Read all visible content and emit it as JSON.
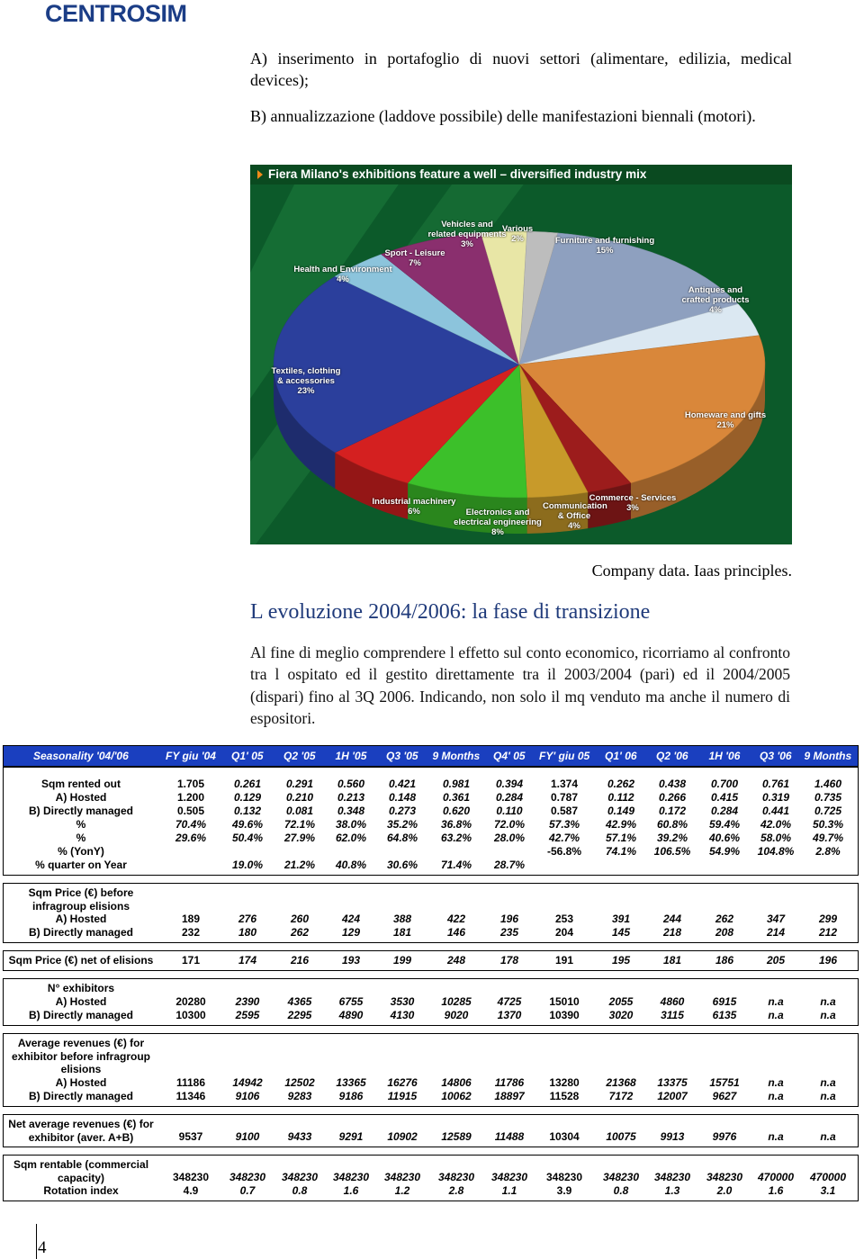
{
  "header": {
    "logo": "CENTROSIM"
  },
  "list": [
    "A)  inserimento in portafoglio di nuovi settori (alimentare, edilizia, medical devices);",
    "B)  annualizzazione (laddove possibile) delle manifestazioni biennali (motori)."
  ],
  "figure": {
    "chart_data": {
      "type": "pie",
      "title": "Fiera Milano's exhibitions feature a well – diversified industry mix",
      "categories": [
        "Furniture and furnishing",
        "Antiques and crafted products",
        "Homeware and gifts",
        "Commerce - Services",
        "Communication & Office",
        "Electronics and electrical engineering",
        "Industrial machinery",
        "Textiles, clothing & accessories",
        "Health and Environment",
        "Sport - Leisure",
        "Vehicles and related equipments",
        "Various"
      ],
      "values": [
        15,
        4,
        21,
        3,
        4,
        8,
        6,
        23,
        4,
        7,
        3,
        2
      ],
      "value_labels": [
        "15%",
        "4%",
        "21%",
        "3%",
        "4%",
        "8%",
        "6%",
        "23%",
        "4%",
        "7%",
        "3%",
        "2%"
      ],
      "colors": [
        "#8ea0bf",
        "#dbe8f2",
        "#d9873a",
        "#9c1c1c",
        "#c89a2a",
        "#3cc02a",
        "#d42020",
        "#2b3f9c",
        "#8cc4dc",
        "#8a2f6e",
        "#e8e6a6",
        "#bdbdbd"
      ]
    }
  },
  "caption": "Company data. Iaas principles.",
  "heading": "L evoluzione 2004/2006: la fase di transizione",
  "paragraph": "Al fine di meglio comprendere l effetto sul conto economico, ricorriamo al confronto tra  l ospitato  ed il  gestito direttamente  tra il 2003/2004 (pari) ed il 2004/2005 (dispari) fino al 3Q 2006. Indicando, non solo il mq venduto ma anche il numero di espositori.",
  "table": {
    "columns": [
      "Seasonality '04/'06",
      "FY giu '04",
      "Q1' 05",
      "Q2 '05",
      "1H '05",
      "Q3 '05",
      "9 Months",
      "Q4' 05",
      "FY' giu 05",
      "Q1' 06",
      "Q2 '06",
      "1H '06",
      "Q3 '06",
      "9 Months"
    ],
    "sections": [
      {
        "rows": [
          {
            "label": "Sqm rented out",
            "cells": [
              "1.705",
              "0.261",
              "0.291",
              "0.560",
              "0.421",
              "0.981",
              "0.394",
              "1.374",
              "0.262",
              "0.438",
              "0.700",
              "0.761",
              "1.460"
            ]
          },
          {
            "label": "A) Hosted",
            "cells": [
              "1.200",
              "0.129",
              "0.210",
              "0.213",
              "0.148",
              "0.361",
              "0.284",
              "0.787",
              "0.112",
              "0.266",
              "0.415",
              "0.319",
              "0.735"
            ]
          },
          {
            "label": "B) Directly managed",
            "cells": [
              "0.505",
              "0.132",
              "0.081",
              "0.348",
              "0.273",
              "0.620",
              "0.110",
              "0.587",
              "0.149",
              "0.172",
              "0.284",
              "0.441",
              "0.725"
            ]
          },
          {
            "label": "%",
            "cells": [
              "70.4%",
              "49.6%",
              "72.1%",
              "38.0%",
              "35.2%",
              "36.8%",
              "72.0%",
              "57.3%",
              "42.9%",
              "60.8%",
              "59.4%",
              "42.0%",
              "50.3%"
            ]
          },
          {
            "label": "%",
            "cells": [
              "29.6%",
              "50.4%",
              "27.9%",
              "62.0%",
              "64.8%",
              "63.2%",
              "28.0%",
              "42.7%",
              "57.1%",
              "39.2%",
              "40.6%",
              "58.0%",
              "49.7%"
            ]
          },
          {
            "label": "% (YonY)",
            "cells": [
              null,
              null,
              null,
              null,
              null,
              null,
              null,
              "-56.8%",
              "74.1%",
              "106.5%",
              "54.9%",
              "104.8%",
              "2.8%"
            ]
          },
          {
            "label": "% quarter on Year",
            "cells": [
              null,
              "19.0%",
              "21.2%",
              "40.8%",
              "30.6%",
              "71.4%",
              "28.7%",
              null,
              null,
              null,
              null,
              null,
              null
            ]
          }
        ]
      },
      {
        "rows": [
          {
            "label": "Sqm Price (€) before infragroup elisions"
          },
          {
            "label": "A) Hosted",
            "cells": [
              "189",
              "276",
              "260",
              "424",
              "388",
              "422",
              "196",
              "253",
              "391",
              "244",
              "262",
              "347",
              "299"
            ]
          },
          {
            "label": "B) Directly managed",
            "cells": [
              "232",
              "180",
              "262",
              "129",
              "181",
              "146",
              "235",
              "204",
              "145",
              "218",
              "208",
              "214",
              "212"
            ]
          }
        ]
      },
      {
        "rows": [
          {
            "label": "Sqm Price (€) net of elisions",
            "cells": [
              "171",
              "174",
              "216",
              "193",
              "199",
              "248",
              "178",
              "191",
              "195",
              "181",
              "186",
              "205",
              "196"
            ]
          }
        ]
      },
      {
        "rows": [
          {
            "label": "N° exhibitors"
          },
          {
            "label": "A) Hosted",
            "cells": [
              "20280",
              "2390",
              "4365",
              "6755",
              "3530",
              "10285",
              "4725",
              "15010",
              "2055",
              "4860",
              "6915",
              "n.a",
              "n.a"
            ]
          },
          {
            "label": "B) Directly managed",
            "cells": [
              "10300",
              "2595",
              "2295",
              "4890",
              "4130",
              "9020",
              "1370",
              "10390",
              "3020",
              "3115",
              "6135",
              "n.a",
              "n.a"
            ]
          }
        ]
      },
      {
        "rows": [
          {
            "label": "Average revenues (€) for exhibitor before infragroup elisions"
          },
          {
            "label": "A) Hosted",
            "cells": [
              "11186",
              "14942",
              "12502",
              "13365",
              "16276",
              "14806",
              "11786",
              "13280",
              "21368",
              "13375",
              "15751",
              "n.a",
              "n.a"
            ]
          },
          {
            "label": "B) Directly managed",
            "cells": [
              "11346",
              "9106",
              "9283",
              "9186",
              "11915",
              "10062",
              "18897",
              "11528",
              "7172",
              "12007",
              "9627",
              "n.a",
              "n.a"
            ]
          }
        ]
      },
      {
        "rows": [
          {
            "label": "Net average revenues (€) for exhibitor (aver. A+B)",
            "cells": [
              "9537",
              "9100",
              "9433",
              "9291",
              "10902",
              "12589",
              "11488",
              "10304",
              "10075",
              "9913",
              "9976",
              "n.a",
              "n.a"
            ]
          }
        ]
      },
      {
        "rows": [
          {
            "label": "Sqm rentable (commercial capacity)",
            "cells": [
              "348230",
              "348230",
              "348230",
              "348230",
              "348230",
              "348230",
              "348230",
              "348230",
              "348230",
              "348230",
              "348230",
              "470000",
              "470000"
            ]
          },
          {
            "label": "Rotation index",
            "cells": [
              "4.9",
              "0.7",
              "0.8",
              "1.6",
              "1.2",
              "2.8",
              "1.1",
              "3.9",
              "0.8",
              "1.3",
              "2.0",
              "1.6",
              "3.1"
            ]
          }
        ]
      }
    ]
  },
  "page_number": "4"
}
